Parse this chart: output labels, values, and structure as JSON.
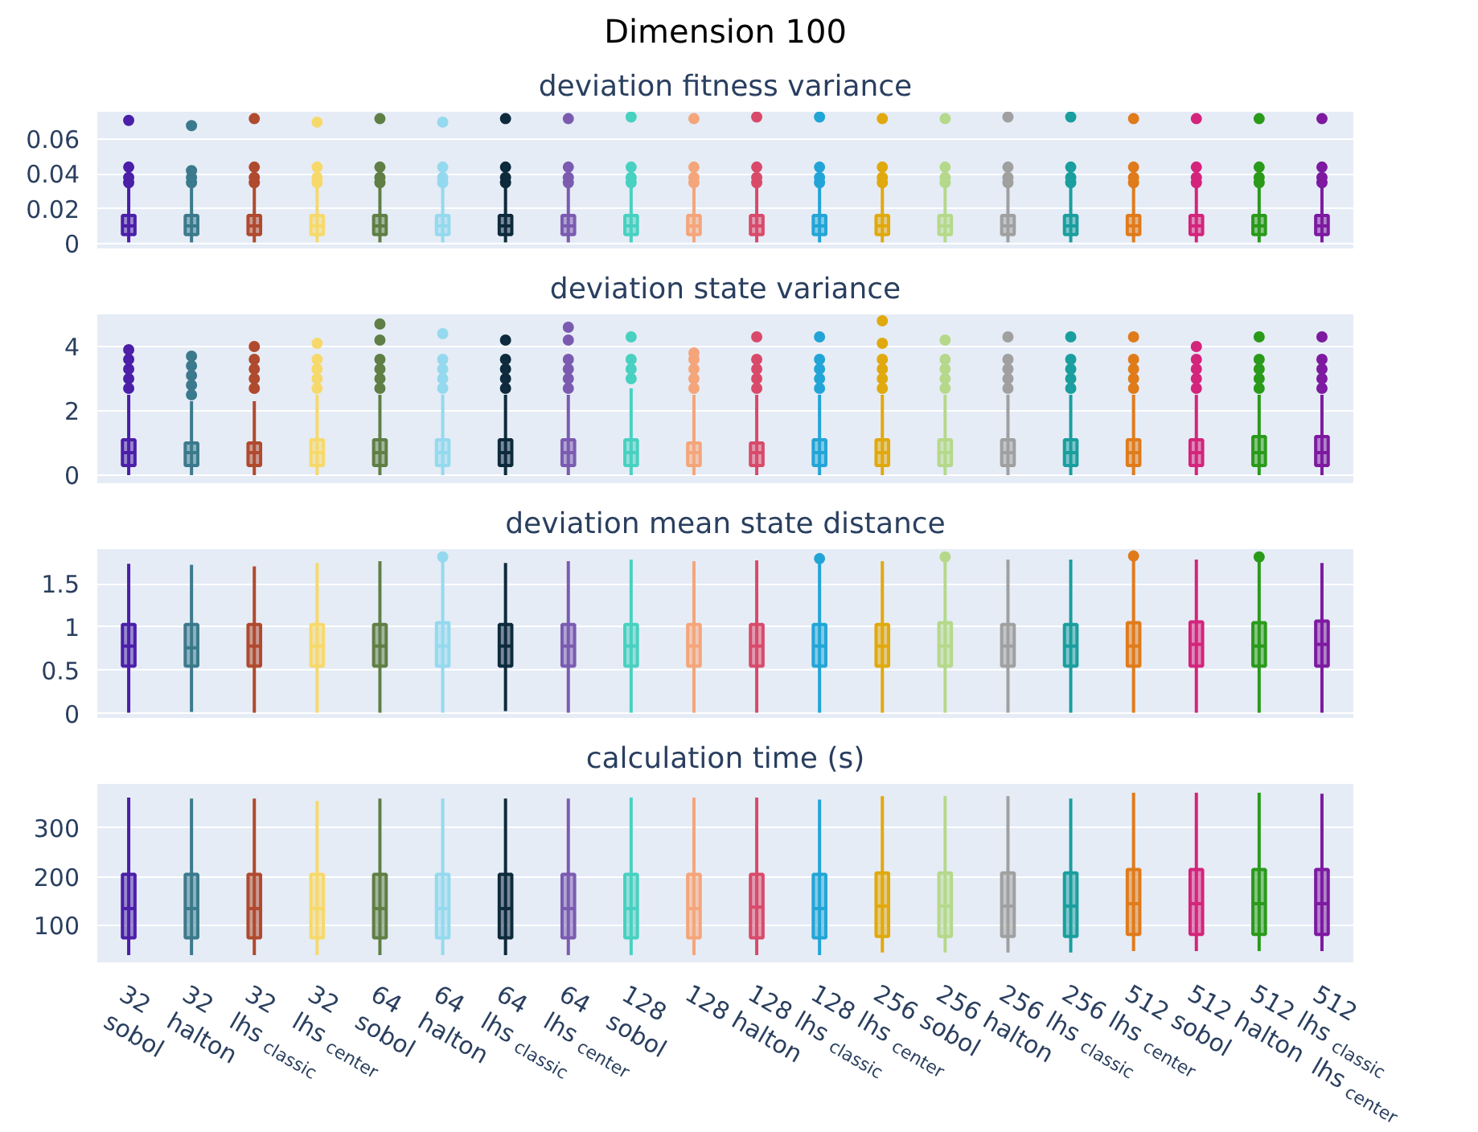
{
  "chart_data": [
    {
      "type": "box",
      "title": "Dimension 100",
      "subtitle": "deviation fitness variance",
      "tick_labels": "y",
      "grid": "y",
      "ylim": [
        -0.003,
        0.076
      ],
      "yticks": [
        0,
        0.02,
        0.04,
        0.06
      ],
      "categories": [
        null,
        null,
        null,
        null,
        null,
        null,
        null,
        null,
        null,
        null,
        null,
        null,
        null,
        null,
        null,
        null,
        null,
        null,
        null,
        null
      ],
      "colors": [
        "#4b1fa8",
        "#3b7a8c",
        "#b04a2e",
        "#f7d96b",
        "#5f7f45",
        "#95d9ee",
        "#0e2a3d",
        "#7b5bb0",
        "#48d1c0",
        "#f5a57a",
        "#d94a6a",
        "#22a5d6",
        "#e0a90e",
        "#b5d98a",
        "#a0a0a0",
        "#1a9e9e",
        "#e07b1a",
        "#d4247c",
        "#2a9a1a",
        "#7d1aa0"
      ],
      "boxes": [
        {
          "low": 0.0005,
          "q1": 0.005,
          "median": 0.01,
          "q3": 0.016,
          "high": 0.033,
          "outliers": [
            0.035,
            0.038,
            0.044,
            0.071
          ]
        },
        {
          "low": 0.0005,
          "q1": 0.005,
          "median": 0.01,
          "q3": 0.016,
          "high": 0.033,
          "outliers": [
            0.035,
            0.038,
            0.042,
            0.068
          ]
        },
        {
          "low": 0.0005,
          "q1": 0.005,
          "median": 0.01,
          "q3": 0.016,
          "high": 0.033,
          "outliers": [
            0.035,
            0.038,
            0.044,
            0.072
          ]
        },
        {
          "low": 0.0005,
          "q1": 0.005,
          "median": 0.01,
          "q3": 0.016,
          "high": 0.033,
          "outliers": [
            0.035,
            0.038,
            0.044,
            0.07
          ]
        },
        {
          "low": 0.0005,
          "q1": 0.005,
          "median": 0.01,
          "q3": 0.016,
          "high": 0.033,
          "outliers": [
            0.035,
            0.038,
            0.044,
            0.072
          ]
        },
        {
          "low": 0.0005,
          "q1": 0.005,
          "median": 0.01,
          "q3": 0.016,
          "high": 0.033,
          "outliers": [
            0.035,
            0.038,
            0.044,
            0.07
          ]
        },
        {
          "low": 0.0005,
          "q1": 0.005,
          "median": 0.01,
          "q3": 0.016,
          "high": 0.033,
          "outliers": [
            0.035,
            0.038,
            0.044,
            0.072
          ]
        },
        {
          "low": 0.0005,
          "q1": 0.005,
          "median": 0.01,
          "q3": 0.016,
          "high": 0.033,
          "outliers": [
            0.035,
            0.038,
            0.044,
            0.072
          ]
        },
        {
          "low": 0.0005,
          "q1": 0.005,
          "median": 0.01,
          "q3": 0.016,
          "high": 0.033,
          "outliers": [
            0.035,
            0.038,
            0.044,
            0.073
          ]
        },
        {
          "low": 0.0005,
          "q1": 0.005,
          "median": 0.01,
          "q3": 0.016,
          "high": 0.033,
          "outliers": [
            0.035,
            0.038,
            0.044,
            0.072
          ]
        },
        {
          "low": 0.0005,
          "q1": 0.005,
          "median": 0.01,
          "q3": 0.016,
          "high": 0.033,
          "outliers": [
            0.035,
            0.038,
            0.044,
            0.073
          ]
        },
        {
          "low": 0.0005,
          "q1": 0.005,
          "median": 0.01,
          "q3": 0.016,
          "high": 0.033,
          "outliers": [
            0.035,
            0.038,
            0.044,
            0.073
          ]
        },
        {
          "low": 0.0005,
          "q1": 0.005,
          "median": 0.01,
          "q3": 0.016,
          "high": 0.033,
          "outliers": [
            0.035,
            0.038,
            0.044,
            0.072
          ]
        },
        {
          "low": 0.0005,
          "q1": 0.005,
          "median": 0.01,
          "q3": 0.016,
          "high": 0.033,
          "outliers": [
            0.035,
            0.038,
            0.044,
            0.072
          ]
        },
        {
          "low": 0.0005,
          "q1": 0.005,
          "median": 0.01,
          "q3": 0.016,
          "high": 0.033,
          "outliers": [
            0.035,
            0.038,
            0.044,
            0.073
          ]
        },
        {
          "low": 0.0005,
          "q1": 0.005,
          "median": 0.01,
          "q3": 0.016,
          "high": 0.033,
          "outliers": [
            0.035,
            0.038,
            0.044,
            0.073
          ]
        },
        {
          "low": 0.0005,
          "q1": 0.005,
          "median": 0.01,
          "q3": 0.016,
          "high": 0.033,
          "outliers": [
            0.035,
            0.038,
            0.044,
            0.072
          ]
        },
        {
          "low": 0.0005,
          "q1": 0.005,
          "median": 0.01,
          "q3": 0.016,
          "high": 0.033,
          "outliers": [
            0.035,
            0.038,
            0.044,
            0.072
          ]
        },
        {
          "low": 0.0005,
          "q1": 0.005,
          "median": 0.01,
          "q3": 0.016,
          "high": 0.033,
          "outliers": [
            0.035,
            0.038,
            0.044,
            0.072
          ]
        },
        {
          "low": 0.0005,
          "q1": 0.005,
          "median": 0.01,
          "q3": 0.016,
          "high": 0.033,
          "outliers": [
            0.035,
            0.038,
            0.044,
            0.072
          ]
        }
      ]
    },
    {
      "type": "box",
      "title": "deviation state variance",
      "tick_labels": "y",
      "grid": "y",
      "ylim": [
        -0.25,
        5.0
      ],
      "yticks": [
        0,
        2,
        4
      ],
      "categories": [
        null,
        null,
        null,
        null,
        null,
        null,
        null,
        null,
        null,
        null,
        null,
        null,
        null,
        null,
        null,
        null,
        null,
        null,
        null,
        null
      ],
      "colors": [
        "#4b1fa8",
        "#3b7a8c",
        "#b04a2e",
        "#f7d96b",
        "#5f7f45",
        "#95d9ee",
        "#0e2a3d",
        "#7b5bb0",
        "#48d1c0",
        "#f5a57a",
        "#d94a6a",
        "#22a5d6",
        "#e0a90e",
        "#b5d98a",
        "#a0a0a0",
        "#1a9e9e",
        "#e07b1a",
        "#d4247c",
        "#2a9a1a",
        "#7d1aa0"
      ],
      "boxes": [
        {
          "low": 0,
          "q1": 0.3,
          "median": 0.7,
          "q3": 1.1,
          "high": 2.5,
          "outliers": [
            2.7,
            3.0,
            3.3,
            3.6,
            3.9
          ]
        },
        {
          "low": 0,
          "q1": 0.3,
          "median": 0.7,
          "q3": 1.0,
          "high": 2.3,
          "outliers": [
            2.5,
            2.8,
            3.1,
            3.4,
            3.7
          ]
        },
        {
          "low": 0,
          "q1": 0.3,
          "median": 0.7,
          "q3": 1.0,
          "high": 2.3,
          "outliers": [
            2.7,
            3.0,
            3.3,
            3.6,
            4.0
          ]
        },
        {
          "low": 0,
          "q1": 0.3,
          "median": 0.7,
          "q3": 1.1,
          "high": 2.5,
          "outliers": [
            2.7,
            3.0,
            3.3,
            3.6,
            4.1
          ]
        },
        {
          "low": 0,
          "q1": 0.3,
          "median": 0.7,
          "q3": 1.1,
          "high": 2.5,
          "outliers": [
            2.7,
            3.0,
            3.3,
            3.6,
            4.2,
            4.7
          ]
        },
        {
          "low": 0,
          "q1": 0.3,
          "median": 0.7,
          "q3": 1.1,
          "high": 2.5,
          "outliers": [
            2.7,
            3.0,
            3.3,
            3.6,
            4.4
          ]
        },
        {
          "low": 0,
          "q1": 0.3,
          "median": 0.7,
          "q3": 1.1,
          "high": 2.5,
          "outliers": [
            2.7,
            3.0,
            3.3,
            3.6,
            4.2
          ]
        },
        {
          "low": 0,
          "q1": 0.3,
          "median": 0.7,
          "q3": 1.1,
          "high": 2.5,
          "outliers": [
            2.7,
            3.0,
            3.3,
            3.6,
            4.2,
            4.6
          ]
        },
        {
          "low": 0,
          "q1": 0.3,
          "median": 0.7,
          "q3": 1.1,
          "high": 2.7,
          "outliers": [
            3.0,
            3.3,
            3.6,
            4.3
          ]
        },
        {
          "low": 0,
          "q1": 0.3,
          "median": 0.7,
          "q3": 1.0,
          "high": 2.5,
          "outliers": [
            2.7,
            3.0,
            3.3,
            3.6,
            3.8
          ]
        },
        {
          "low": 0,
          "q1": 0.3,
          "median": 0.7,
          "q3": 1.0,
          "high": 2.5,
          "outliers": [
            2.7,
            3.0,
            3.3,
            3.6,
            4.3
          ]
        },
        {
          "low": 0,
          "q1": 0.3,
          "median": 0.7,
          "q3": 1.1,
          "high": 2.5,
          "outliers": [
            2.7,
            3.0,
            3.3,
            3.6,
            4.3
          ]
        },
        {
          "low": 0,
          "q1": 0.3,
          "median": 0.7,
          "q3": 1.1,
          "high": 2.5,
          "outliers": [
            2.7,
            3.0,
            3.3,
            3.6,
            4.1,
            4.8
          ]
        },
        {
          "low": 0,
          "q1": 0.3,
          "median": 0.7,
          "q3": 1.1,
          "high": 2.5,
          "outliers": [
            2.7,
            3.0,
            3.3,
            3.6,
            4.2
          ]
        },
        {
          "low": 0,
          "q1": 0.3,
          "median": 0.7,
          "q3": 1.1,
          "high": 2.5,
          "outliers": [
            2.7,
            3.0,
            3.3,
            3.6,
            4.3
          ]
        },
        {
          "low": 0,
          "q1": 0.3,
          "median": 0.7,
          "q3": 1.1,
          "high": 2.5,
          "outliers": [
            2.7,
            3.0,
            3.3,
            3.6,
            4.3
          ]
        },
        {
          "low": 0,
          "q1": 0.3,
          "median": 0.7,
          "q3": 1.1,
          "high": 2.5,
          "outliers": [
            2.7,
            3.0,
            3.3,
            3.6,
            4.3
          ]
        },
        {
          "low": 0,
          "q1": 0.3,
          "median": 0.7,
          "q3": 1.1,
          "high": 2.5,
          "outliers": [
            2.7,
            3.0,
            3.3,
            3.6,
            4.0
          ]
        },
        {
          "low": 0,
          "q1": 0.3,
          "median": 0.7,
          "q3": 1.2,
          "high": 2.5,
          "outliers": [
            2.7,
            3.0,
            3.3,
            3.6,
            4.3
          ]
        },
        {
          "low": 0,
          "q1": 0.3,
          "median": 0.7,
          "q3": 1.2,
          "high": 2.5,
          "outliers": [
            2.7,
            3.0,
            3.3,
            3.6,
            4.3
          ]
        }
      ]
    },
    {
      "type": "box",
      "title": "deviation mean state distance",
      "tick_labels": "y",
      "grid": "y",
      "ylim": [
        -0.05,
        1.9
      ],
      "yticks": [
        0,
        0.5,
        1,
        1.5
      ],
      "categories": [
        null,
        null,
        null,
        null,
        null,
        null,
        null,
        null,
        null,
        null,
        null,
        null,
        null,
        null,
        null,
        null,
        null,
        null,
        null,
        null
      ],
      "colors": [
        "#4b1fa8",
        "#3b7a8c",
        "#b04a2e",
        "#f7d96b",
        "#5f7f45",
        "#95d9ee",
        "#0e2a3d",
        "#7b5bb0",
        "#48d1c0",
        "#f5a57a",
        "#d94a6a",
        "#22a5d6",
        "#e0a90e",
        "#b5d98a",
        "#a0a0a0",
        "#1a9e9e",
        "#e07b1a",
        "#d4247c",
        "#2a9a1a",
        "#7d1aa0"
      ],
      "boxes": [
        {
          "low": 0.01,
          "q1": 0.55,
          "median": 0.78,
          "q3": 1.03,
          "high": 1.73
        },
        {
          "low": 0.02,
          "q1": 0.55,
          "median": 0.76,
          "q3": 1.03,
          "high": 1.72
        },
        {
          "low": 0.01,
          "q1": 0.55,
          "median": 0.78,
          "q3": 1.03,
          "high": 1.7
        },
        {
          "low": 0.01,
          "q1": 0.55,
          "median": 0.78,
          "q3": 1.03,
          "high": 1.74
        },
        {
          "low": 0.01,
          "q1": 0.55,
          "median": 0.78,
          "q3": 1.03,
          "high": 1.76
        },
        {
          "low": 0.01,
          "q1": 0.55,
          "median": 0.78,
          "q3": 1.05,
          "high": 1.76,
          "outliers": [
            1.81
          ]
        },
        {
          "low": 0.03,
          "q1": 0.55,
          "median": 0.78,
          "q3": 1.03,
          "high": 1.74
        },
        {
          "low": 0.01,
          "q1": 0.55,
          "median": 0.78,
          "q3": 1.03,
          "high": 1.76
        },
        {
          "low": 0.01,
          "q1": 0.55,
          "median": 0.78,
          "q3": 1.03,
          "high": 1.78
        },
        {
          "low": 0.01,
          "q1": 0.55,
          "median": 0.78,
          "q3": 1.03,
          "high": 1.76
        },
        {
          "low": 0.01,
          "q1": 0.55,
          "median": 0.78,
          "q3": 1.03,
          "high": 1.77
        },
        {
          "low": 0.01,
          "q1": 0.55,
          "median": 0.78,
          "q3": 1.03,
          "high": 1.74,
          "outliers": [
            1.79
          ]
        },
        {
          "low": 0.01,
          "q1": 0.55,
          "median": 0.78,
          "q3": 1.03,
          "high": 1.76
        },
        {
          "low": 0.01,
          "q1": 0.55,
          "median": 0.78,
          "q3": 1.05,
          "high": 1.76,
          "outliers": [
            1.81
          ]
        },
        {
          "low": 0.01,
          "q1": 0.55,
          "median": 0.78,
          "q3": 1.03,
          "high": 1.78
        },
        {
          "low": 0.01,
          "q1": 0.55,
          "median": 0.78,
          "q3": 1.03,
          "high": 1.78
        },
        {
          "low": 0.01,
          "q1": 0.55,
          "median": 0.78,
          "q3": 1.05,
          "high": 1.78,
          "outliers": [
            1.82
          ]
        },
        {
          "low": 0.01,
          "q1": 0.55,
          "median": 0.8,
          "q3": 1.06,
          "high": 1.78
        },
        {
          "low": 0.01,
          "q1": 0.55,
          "median": 0.78,
          "q3": 1.05,
          "high": 1.76,
          "outliers": [
            1.81
          ]
        },
        {
          "low": 0.01,
          "q1": 0.55,
          "median": 0.8,
          "q3": 1.07,
          "high": 1.74
        }
      ]
    },
    {
      "type": "box",
      "title": "calculation time (s)",
      "grid": "y",
      "ylim": [
        25,
        390
      ],
      "yticks": [
        100,
        200,
        300
      ],
      "categories": [
        "32\nsobol",
        "32\nhalton",
        "32\nlhs$_{classic}$",
        "32\nlhs$_{center}$",
        "64\nsobol",
        "64\nhalton",
        "64\nlhs$_{classic}$",
        "64\nlhs$_{center}$",
        "128\nsobol",
        "128 halton",
        "128 lhs$_{classic}$",
        "128 lhs$_{center}$",
        "256 sobol",
        "256 halton",
        "256 lhs$_{classic}$",
        "256 lhs$_{center}$",
        "512 sobol",
        "512 halton",
        "512 lhs$_{classic}$",
        "512\nlhs$_{center}$"
      ],
      "colors": [
        "#4b1fa8",
        "#3b7a8c",
        "#b04a2e",
        "#f7d96b",
        "#5f7f45",
        "#95d9ee",
        "#0e2a3d",
        "#7b5bb0",
        "#48d1c0",
        "#f5a57a",
        "#d94a6a",
        "#22a5d6",
        "#e0a90e",
        "#b5d98a",
        "#a0a0a0",
        "#1a9e9e",
        "#e07b1a",
        "#d4247c",
        "#2a9a1a",
        "#7d1aa0"
      ],
      "boxes": [
        {
          "low": 40,
          "q1": 75,
          "median": 135,
          "q3": 205,
          "high": 362
        },
        {
          "low": 40,
          "q1": 75,
          "median": 135,
          "q3": 205,
          "high": 360
        },
        {
          "low": 40,
          "q1": 75,
          "median": 135,
          "q3": 205,
          "high": 360
        },
        {
          "low": 40,
          "q1": 75,
          "median": 135,
          "q3": 205,
          "high": 355
        },
        {
          "low": 40,
          "q1": 75,
          "median": 135,
          "q3": 205,
          "high": 360
        },
        {
          "low": 40,
          "q1": 75,
          "median": 135,
          "q3": 205,
          "high": 360
        },
        {
          "low": 40,
          "q1": 75,
          "median": 135,
          "q3": 205,
          "high": 360
        },
        {
          "low": 40,
          "q1": 75,
          "median": 135,
          "q3": 205,
          "high": 360
        },
        {
          "low": 40,
          "q1": 75,
          "median": 135,
          "q3": 205,
          "high": 362
        },
        {
          "low": 40,
          "q1": 75,
          "median": 135,
          "q3": 205,
          "high": 362
        },
        {
          "low": 40,
          "q1": 75,
          "median": 138,
          "q3": 205,
          "high": 362
        },
        {
          "low": 40,
          "q1": 75,
          "median": 135,
          "q3": 205,
          "high": 358
        },
        {
          "low": 45,
          "q1": 78,
          "median": 140,
          "q3": 208,
          "high": 365
        },
        {
          "low": 45,
          "q1": 78,
          "median": 140,
          "q3": 208,
          "high": 365
        },
        {
          "low": 45,
          "q1": 78,
          "median": 140,
          "q3": 208,
          "high": 365
        },
        {
          "low": 45,
          "q1": 78,
          "median": 140,
          "q3": 208,
          "high": 360
        },
        {
          "low": 48,
          "q1": 82,
          "median": 145,
          "q3": 215,
          "high": 372
        },
        {
          "low": 48,
          "q1": 82,
          "median": 145,
          "q3": 215,
          "high": 372
        },
        {
          "low": 48,
          "q1": 82,
          "median": 145,
          "q3": 215,
          "high": 372
        },
        {
          "low": 48,
          "q1": 82,
          "median": 145,
          "q3": 215,
          "high": 370
        }
      ]
    }
  ]
}
